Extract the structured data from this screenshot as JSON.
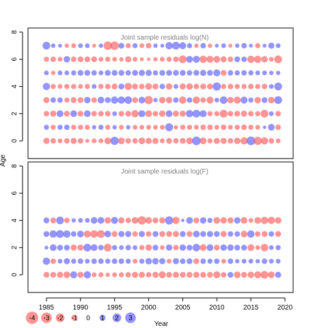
{
  "chart_data": {
    "type": "scatter",
    "subtype": "bubble-residual-plot",
    "xlabel": "Year",
    "ylabel": "Age",
    "x_ticks": [
      1985,
      1990,
      1995,
      2000,
      2005,
      2010,
      2015,
      2020
    ],
    "y_ticks": [
      0,
      2,
      4,
      6,
      8
    ],
    "xlim": [
      1982.3,
      2021.2
    ],
    "ylim": [
      -1.3,
      8.3
    ],
    "grid": false,
    "colors": {
      "negative": "#ff4d4d",
      "positive": "#4d4dff",
      "alpha": 0.6
    },
    "legend": {
      "position": "bottom-left",
      "values": [
        -4,
        -3,
        -2,
        -1,
        0,
        1,
        2,
        3
      ],
      "labels": [
        "-4",
        "-3",
        "-2",
        "-1",
        "0",
        "1",
        "2",
        "3"
      ]
    },
    "years": [
      1985,
      1986,
      1987,
      1988,
      1989,
      1990,
      1991,
      1992,
      1993,
      1994,
      1995,
      1996,
      1997,
      1998,
      1999,
      2000,
      2001,
      2002,
      2003,
      2004,
      2005,
      2006,
      2007,
      2008,
      2009,
      2010,
      2011,
      2012,
      2013,
      2014,
      2015,
      2016,
      2017,
      2018,
      2019
    ],
    "panels": [
      {
        "title": "Joint sample residuals log(N)",
        "ages": [
          0,
          1,
          2,
          3,
          4,
          5,
          6,
          7
        ],
        "residuals": [
          [
            -1,
            -0.8,
            -0.6,
            -0.8,
            -1,
            -0.8,
            -0.4,
            -0.6,
            -0.6,
            -1.2,
            1.8,
            -1.2,
            -0.8,
            -0.8,
            -1.2,
            -1,
            -1,
            -0.6,
            -0.9,
            -0.8,
            -0.9,
            -1.2,
            2,
            -1.2,
            -0.7,
            -1,
            -1,
            -0.8,
            -1.1,
            -1.4,
            2,
            -1.8,
            -1.4,
            -0.8,
            -0.6
          ],
          [
            0.7,
            -0.7,
            0.7,
            0.8,
            -0.7,
            -0.7,
            -0.7,
            0.5,
            0.7,
            -0.7,
            0.5,
            -0.6,
            0.5,
            -0.6,
            -0.6,
            -0.6,
            -0.6,
            -0.6,
            1.7,
            -0.5,
            -0.7,
            -0.7,
            -0.6,
            -0.8,
            -0.8,
            -0.6,
            -0.8,
            -0.6,
            -0.7,
            -0.8,
            -0.7,
            -0.6,
            0.3,
            1.2,
            -0.8
          ],
          [
            -0.8,
            -1,
            1.2,
            -0.9,
            1.2,
            -0.9,
            1.2,
            -0.8,
            -0.8,
            -0.8,
            0.6,
            -0.8,
            -0.9,
            -1.4,
            1.3,
            -1.2,
            -0.8,
            -1.1,
            1.2,
            -1,
            -1,
            1.4,
            1.6,
            1.3,
            -0.7,
            -0.7,
            -1.6,
            -0.8,
            -0.9,
            -1,
            -0.8,
            -0.7,
            -1.6,
            0.6,
            -0.8
          ],
          [
            -1,
            0.8,
            0.8,
            -0.7,
            -0.9,
            -0.9,
            1.1,
            -0.8,
            1.2,
            0.9,
            1.4,
            1.4,
            1.5,
            -0.9,
            1.2,
            -1.8,
            0.5,
            -1.1,
            -1.1,
            0.8,
            -1.4,
            0.8,
            -1.4,
            -0.8,
            -1.3,
            0.6,
            1.5,
            -1.1,
            -1.3,
            1.3,
            0.7,
            -1.1,
            0.9,
            -1.1,
            1.6
          ],
          [
            1.4,
            -0.7,
            -0.6,
            -0.7,
            -0.7,
            -0.6,
            -0.7,
            0.6,
            -0.7,
            -0.8,
            -0.9,
            0.9,
            -1.4,
            -0.9,
            -0.8,
            -1.2,
            -0.9,
            0.8,
            -1.1,
            0.6,
            -1,
            -1.1,
            -0.8,
            -0.9,
            -0.9,
            1.8,
            -0.7,
            -0.8,
            -0.7,
            -0.7,
            -0.8,
            -0.7,
            -0.8,
            0.6,
            1.6
          ],
          [
            0.6,
            -0.5,
            0.6,
            0.6,
            0.7,
            0.9,
            0.9,
            0.8,
            0.6,
            0.9,
            0.9,
            0.9,
            0.8,
            0.9,
            1,
            1,
            0.7,
            0.9,
            0.9,
            0.9,
            0.9,
            0.8,
            0.9,
            1,
            0.9,
            1.3,
            -0.9,
            0.8,
            0.7,
            0.8,
            0.7,
            0.6,
            0.6,
            0.5,
            0.5
          ],
          [
            -0.7,
            -0.8,
            -0.6,
            1.1,
            -0.8,
            -0.9,
            -0.9,
            -0.9,
            -0.6,
            -0.7,
            -0.6,
            -0.5,
            -1,
            -0.6,
            -0.4,
            -0.3,
            -0.5,
            -0.6,
            -0.7,
            -0.8,
            -1.6,
            1.2,
            1.3,
            -1.4,
            -1.3,
            -1.2,
            -1,
            -0.8,
            0.9,
            0.8,
            -1.4,
            -1.4,
            -1.1,
            -0.6,
            -1.6
          ],
          [
            1.6,
            0.5,
            0.4,
            -0.5,
            -0.6,
            0.6,
            0.6,
            -0.4,
            0.5,
            -1.9,
            -1.9,
            0.9,
            -0.7,
            0.7,
            -0.6,
            -0.8,
            0.5,
            0.4,
            1.4,
            1.6,
            1.3,
            0.7,
            -0.5,
            0.8,
            -0.5,
            0.4,
            0.6,
            -0.4,
            0.5,
            0.8,
            0.4,
            -0.7,
            0.4,
            1,
            0.6
          ]
        ]
      },
      {
        "title": "Joint sample residuals log(F)",
        "ages": [
          0,
          1,
          2,
          3,
          4
        ],
        "residuals": [
          [
            -0.9,
            -0.9,
            -1,
            -1.2,
            1.3,
            -1,
            1.4,
            -0.6,
            -0.7,
            -0.5,
            -0.6,
            -0.7,
            -0.8,
            -1,
            -1,
            -0.8,
            -1,
            -1.3,
            -0.9,
            -1,
            -0.9,
            -0.9,
            -1,
            -0.9,
            -0.9,
            -1.3,
            -0.8,
            0.9,
            -1.2,
            -0.9,
            -1.1,
            -1.3,
            -1.6,
            -1.2,
            1
          ],
          [
            1.4,
            -0.8,
            0.6,
            1,
            0.7,
            0.8,
            0.6,
            0.8,
            0.8,
            0.7,
            0.8,
            0.8,
            0.7,
            -0.6,
            0.7,
            1.1,
            1.1,
            1,
            -0.6,
            1,
            0.8,
            0.9,
            -0.9,
            0.8,
            0.7,
            0.8,
            -0.6,
            0.8,
            0.5,
            0.6,
            0.6,
            0.5,
            0.8,
            0.6,
            0.6
          ],
          [
            0.4,
            1.2,
            0.9,
            0.9,
            -1,
            -1,
            1.6,
            1.2,
            0.8,
            -1.6,
            0.7,
            0.6,
            0.8,
            0.6,
            -0.7,
            -1.1,
            0.9,
            -0.6,
            1.1,
            -0.8,
            1.1,
            0.9,
            1.5,
            -1.2,
            1.2,
            -0.9,
            1.1,
            1.1,
            0.9,
            0.9,
            -1.2,
            -0.6,
            -1.5,
            0.6,
            0.7
          ],
          [
            0.9,
            1.4,
            1.6,
            1.4,
            0.8,
            1.2,
            -1.3,
            -1.5,
            -1.6,
            1.2,
            -0.9,
            1,
            1,
            -0.8,
            1,
            -0.8,
            0.9,
            -0.9,
            -0.9,
            -1,
            0.9,
            -0.9,
            1.2,
            0.9,
            1,
            0.9,
            -1,
            0.8,
            0.8,
            -1.2,
            1.4,
            -0.8,
            -0.9,
            0.8,
            -0.9
          ],
          [
            0.9,
            -0.9,
            1.6,
            -0.8,
            0.5,
            0.6,
            0.6,
            1.2,
            1.2,
            -1.1,
            1.3,
            -1,
            -0.8,
            -1.2,
            -1.9,
            -1.2,
            -0.9,
            -1,
            1.8,
            -1.4,
            0.3,
            1.2,
            -0.9,
            1.1,
            0.7,
            -1.2,
            -1.1,
            -1,
            1.1,
            -1.2,
            -0.6,
            -1.2,
            -1.4,
            -1.4,
            -1.1
          ]
        ]
      }
    ]
  }
}
